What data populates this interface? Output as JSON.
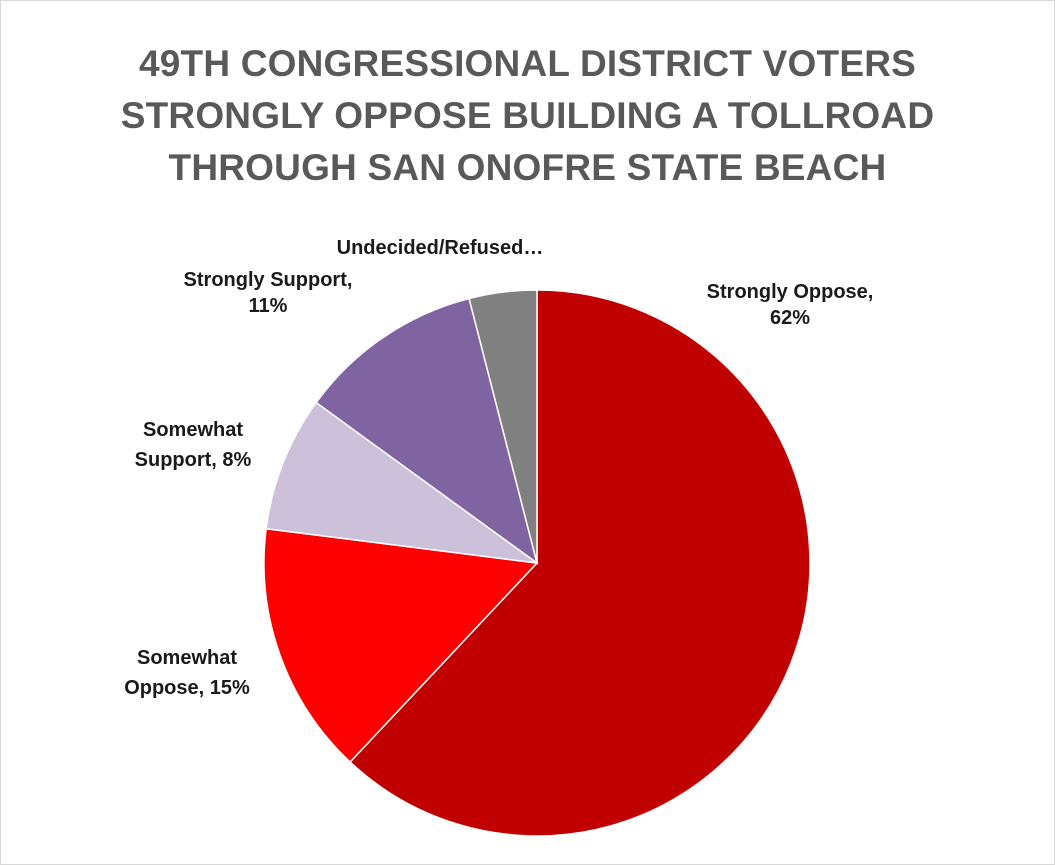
{
  "chart_data": {
    "type": "pie",
    "title_lines": [
      "49TH CONGRESSIONAL DISTRICT VOTERS",
      "STRONGLY OPPOSE BUILDING A TOLLROAD",
      "THROUGH SAN ONOFRE STATE BEACH"
    ],
    "start_angle_deg": 0,
    "direction": "clockwise",
    "slices": [
      {
        "name": "Strongly Oppose",
        "value": 62,
        "label_lines": [
          "Strongly Oppose,",
          "62%"
        ],
        "color": "#c00000"
      },
      {
        "name": "Somewhat Oppose",
        "value": 15,
        "label_lines": [
          "Somewhat",
          "Oppose, 15%"
        ],
        "color": "#ff0000"
      },
      {
        "name": "Somewhat Support",
        "value": 8,
        "label_lines": [
          "Somewhat",
          "Support, 8%"
        ],
        "color": "#ccc0da"
      },
      {
        "name": "Strongly Support",
        "value": 11,
        "label_lines": [
          "Strongly Support,",
          "11%"
        ],
        "color": "#8064a2"
      },
      {
        "name": "Undecided/Refused",
        "value": 4,
        "label_lines": [
          "Undecided/Refused…"
        ],
        "color": "#808080"
      }
    ]
  }
}
